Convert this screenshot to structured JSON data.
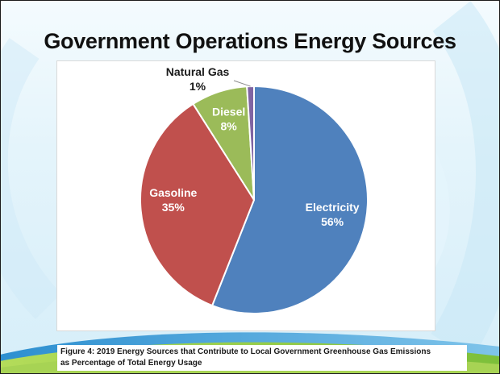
{
  "slide": {
    "title": "Government Operations Energy Sources"
  },
  "chart_data": {
    "type": "pie",
    "title": "",
    "slices": [
      {
        "label": "Electricity",
        "value": 56,
        "percent_label": "56%",
        "color": "#4F81BD"
      },
      {
        "label": "Gasoline",
        "value": 35,
        "percent_label": "35%",
        "color": "#C0504D"
      },
      {
        "label": "Diesel",
        "value": 8,
        "percent_label": "8%",
        "color": "#9BBB59"
      },
      {
        "label": "Natural Gas",
        "value": 1,
        "percent_label": "1%",
        "color": "#8064A2"
      }
    ]
  },
  "caption": {
    "line1": "Figure 4: 2019 Energy Sources that Contribute to Local Government Greenhouse Gas Emissions",
    "line2": "as Percentage of Total Energy Usage"
  },
  "theme": {
    "accent_green": "#8cc63f",
    "accent_blue": "#4aa3d9"
  }
}
